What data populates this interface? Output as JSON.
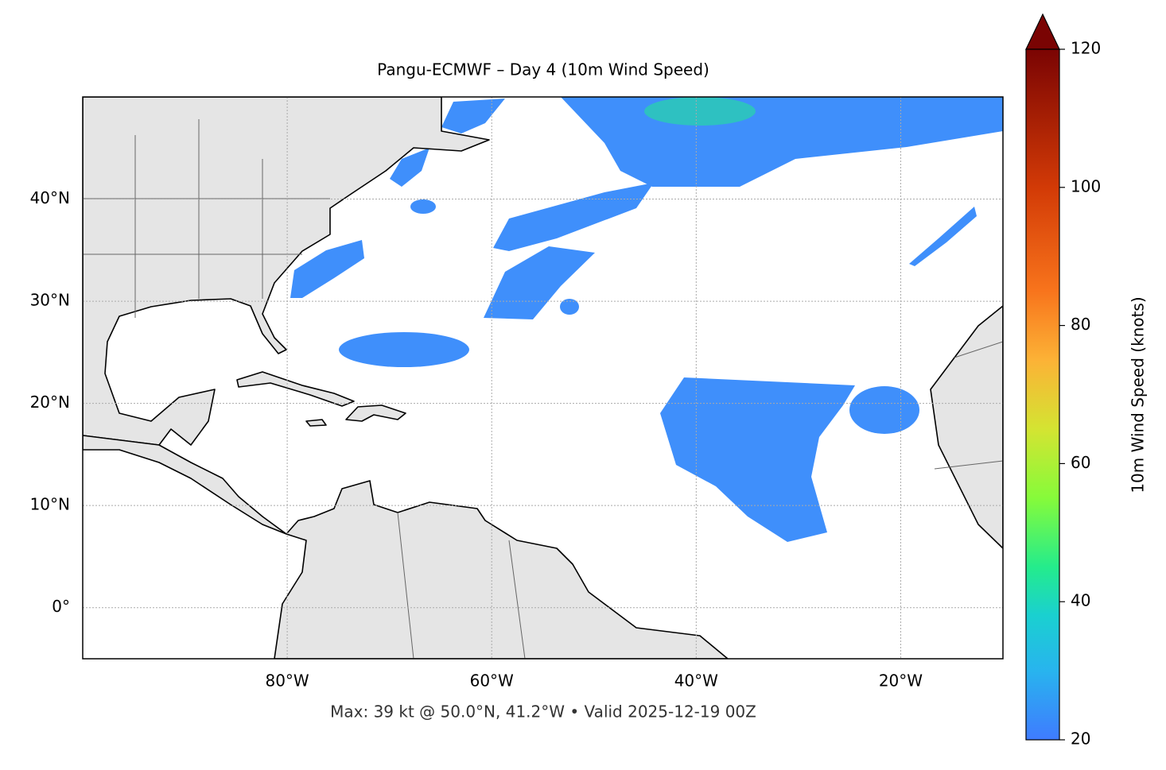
{
  "title": "Pangu-ECMWF – Day 4 (10m Wind Speed)",
  "map": {
    "lonlim": [
      -100,
      -10
    ],
    "latlim": [
      -5,
      50
    ],
    "lon_ticks": [
      {
        "value": -80,
        "label": "80°W"
      },
      {
        "value": -60,
        "label": "60°W"
      },
      {
        "value": -40,
        "label": "40°W"
      },
      {
        "value": -20,
        "label": "20°W"
      }
    ],
    "lat_ticks": [
      {
        "value": 0,
        "label": "0°"
      },
      {
        "value": 10,
        "label": "10°N"
      },
      {
        "value": 20,
        "label": "20°N"
      },
      {
        "value": 30,
        "label": "30°N"
      },
      {
        "value": 40,
        "label": "40°N"
      }
    ],
    "grid": true
  },
  "colorbar": {
    "label": "10m Wind Speed (knots)",
    "lim": [
      20,
      120
    ],
    "ticks": [
      20,
      40,
      60,
      80,
      100,
      120
    ],
    "extend": "max"
  },
  "footnote": "Max: 39 kt @ 50.0°N, 41.2°W • Valid 2025-12-19 00Z"
}
